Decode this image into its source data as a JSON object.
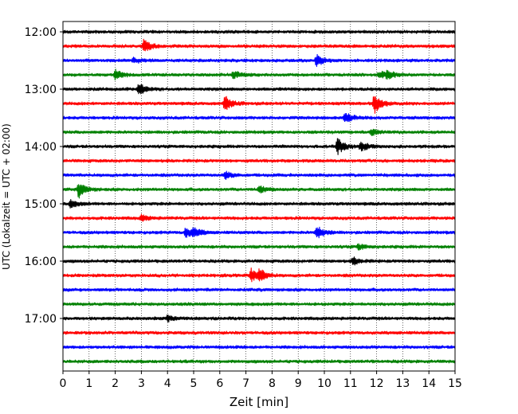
{
  "chart_data": {
    "type": "line",
    "title": "",
    "xlabel": "Zeit  [min]",
    "ylabel": "UTC (Lokalzeit = UTC + 02:00)",
    "xlim": [
      0,
      15
    ],
    "x_ticks": [
      "0",
      "1",
      "2",
      "3",
      "4",
      "5",
      "6",
      "7",
      "8",
      "9",
      "10",
      "11",
      "12",
      "13",
      "14",
      "15"
    ],
    "y_ticks": [
      "12:00",
      "13:00",
      "14:00",
      "15:00",
      "16:00",
      "17:00"
    ],
    "grid": "vertical dotted at each minute",
    "trace_interval_minutes": 15,
    "trace_count": 24,
    "trace_start": "12:00",
    "trace_colors": [
      "#000000",
      "#ff0000",
      "#0000ff",
      "#008000"
    ],
    "events": [
      {
        "trace": 1,
        "minute": 3.1,
        "amp": 1.0
      },
      {
        "trace": 2,
        "minute": 2.7,
        "amp": 0.35
      },
      {
        "trace": 2,
        "minute": 9.7,
        "amp": 0.8
      },
      {
        "trace": 3,
        "minute": 2.0,
        "amp": 0.7
      },
      {
        "trace": 3,
        "minute": 6.5,
        "amp": 0.6
      },
      {
        "trace": 3,
        "minute": 12.1,
        "amp": 0.5
      },
      {
        "trace": 3,
        "minute": 12.4,
        "amp": 0.6
      },
      {
        "trace": 4,
        "minute": 2.9,
        "amp": 0.9
      },
      {
        "trace": 5,
        "minute": 6.2,
        "amp": 1.0
      },
      {
        "trace": 5,
        "minute": 11.9,
        "amp": 1.4
      },
      {
        "trace": 6,
        "minute": 10.8,
        "amp": 0.8
      },
      {
        "trace": 7,
        "minute": 11.8,
        "amp": 0.4
      },
      {
        "trace": 8,
        "minute": 10.5,
        "amp": 1.1
      },
      {
        "trace": 8,
        "minute": 11.4,
        "amp": 0.7
      },
      {
        "trace": 10,
        "minute": 6.2,
        "amp": 0.5
      },
      {
        "trace": 11,
        "minute": 0.6,
        "amp": 1.1
      },
      {
        "trace": 11,
        "minute": 7.5,
        "amp": 0.5
      },
      {
        "trace": 12,
        "minute": 0.3,
        "amp": 0.5
      },
      {
        "trace": 13,
        "minute": 3.0,
        "amp": 0.4
      },
      {
        "trace": 14,
        "minute": 4.7,
        "amp": 0.7
      },
      {
        "trace": 14,
        "minute": 5.0,
        "amp": 0.6
      },
      {
        "trace": 14,
        "minute": 9.7,
        "amp": 1.0
      },
      {
        "trace": 15,
        "minute": 11.3,
        "amp": 0.4
      },
      {
        "trace": 16,
        "minute": 11.1,
        "amp": 0.5
      },
      {
        "trace": 17,
        "minute": 7.2,
        "amp": 0.9
      },
      {
        "trace": 17,
        "minute": 7.5,
        "amp": 0.8
      },
      {
        "trace": 20,
        "minute": 4.0,
        "amp": 0.4
      }
    ]
  }
}
